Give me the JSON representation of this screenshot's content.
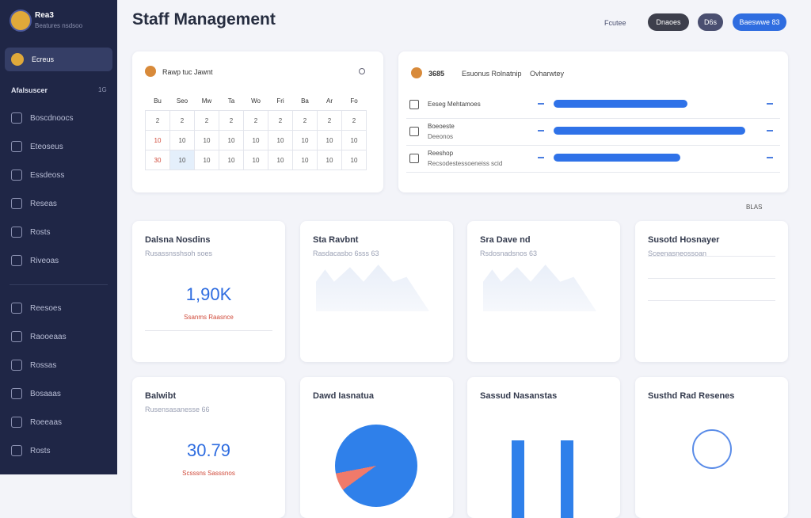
{
  "sidebar": {
    "brand": "Rea3",
    "brand_sub": "Beatures nsdsoo",
    "active": "Ecreus",
    "section": "Afalsuscer",
    "section_count": "1G",
    "items": [
      "Boscdnoocs",
      "Eteoseus",
      "Essdeoss",
      "Reseas",
      "Rosts",
      "Riveoas",
      "Reesoes",
      "Raooeaas",
      "Rossas",
      "Bosaaas",
      "Roeeaas",
      "Rosts"
    ]
  },
  "header": {
    "title": "Staff Management",
    "link": "Fcutee",
    "buttons": [
      "Dnaoes",
      "D6s",
      "Baeswwe 83"
    ]
  },
  "calendar": {
    "title": "Rawp tuc Jawnt",
    "days": [
      "Bu",
      "Seo",
      "Mw",
      "Ta",
      "Wo",
      "Fri",
      "Ba",
      "Ar",
      "Fo"
    ],
    "rows": [
      [
        "2",
        "2",
        "2",
        "2",
        "2",
        "2",
        "2",
        "2",
        "2"
      ],
      [
        "10",
        "10",
        "10",
        "10",
        "10",
        "10",
        "10",
        "10",
        "10"
      ],
      [
        "30",
        "10",
        "10",
        "10",
        "10",
        "10",
        "10",
        "10",
        "10"
      ]
    ]
  },
  "progress": {
    "title": "3685",
    "subtitle": "Esuonus Rolnatnip",
    "subtitle2": "Ovharwtey",
    "rows": [
      {
        "label": "Eeseg Mehtamoes",
        "sub": "",
        "value": 70
      },
      {
        "label": "Boeoeste",
        "sub": "Deeonos",
        "value": 100
      },
      {
        "label": "Reeshop",
        "sub": "Recsodestessoeneiss scid",
        "value": 66
      }
    ],
    "footer": "BLAS"
  },
  "cards": [
    {
      "title": "Dalsna Nosdins",
      "sub": "Rusassnsshsoh soes",
      "big": "1,90K",
      "note": "Ssanms Raasnce"
    },
    {
      "title": "Sta Ravbnt",
      "sub": "Rasdacasbo 6sss 63",
      "big": "",
      "note": ""
    },
    {
      "title": "Sra Dave nd",
      "sub": "Rsdosnadsnos 63",
      "big": "",
      "note": ""
    },
    {
      "title": "Susotd Hosnayer",
      "sub": "Sceenasneossoan",
      "big": "",
      "note": ""
    },
    {
      "title": "Balwibt",
      "sub": "Rusensasanesse 66",
      "big": "30.79",
      "note": "Scsssns Sasssnos"
    },
    {
      "title": "Dawd Iasnatua",
      "sub": "",
      "big": "",
      "note": ""
    },
    {
      "title": "Sassud Nasanstas",
      "sub": "",
      "big": "",
      "note": ""
    },
    {
      "title": "Susthd Rad Resenes",
      "sub": "",
      "big": "",
      "note": ""
    }
  ]
}
